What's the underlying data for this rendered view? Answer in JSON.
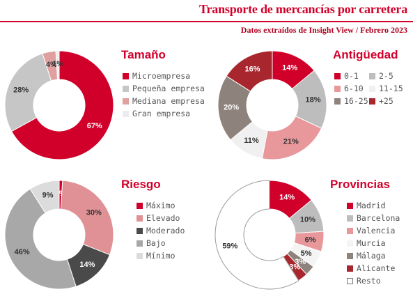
{
  "header": {
    "title": "Transporte de mercancías por carretera",
    "subtitle": "Datos extraídos de Insight View / Febrero 2023"
  },
  "chart_data": [
    {
      "type": "pie",
      "title": "Tamaño",
      "categories": [
        "Microempresa",
        "Pequeña empresa",
        "Mediana empresa",
        "Gran empresa"
      ],
      "values": [
        67,
        28,
        4,
        1
      ],
      "labels": [
        "67%",
        "28%",
        "4%",
        "1%"
      ],
      "colors": [
        "#d1002a",
        "#c6c6c6",
        "#e0a0a0",
        "#ececec"
      ],
      "legend_layout": "list"
    },
    {
      "type": "pie",
      "title": "Antigüedad",
      "categories": [
        "0-1",
        "2-5",
        "6-10",
        "11-15",
        "16-25",
        "+25"
      ],
      "values": [
        14,
        18,
        21,
        11,
        20,
        16
      ],
      "labels": [
        "14%",
        "18%",
        "21%",
        "11%",
        "20%",
        "16%"
      ],
      "colors": [
        "#d1002a",
        "#bdbdbd",
        "#e8989b",
        "#f0f0f0",
        "#8e827c",
        "#a8272e"
      ],
      "legend_layout": "grid"
    },
    {
      "type": "pie",
      "title": "Riesgo",
      "categories": [
        "Máximo",
        "Elevado",
        "Moderado",
        "Bajo",
        "Mínimo"
      ],
      "values": [
        1,
        30,
        14,
        46,
        9
      ],
      "labels": [
        "1%",
        "30%",
        "14%",
        "46%",
        "9%"
      ],
      "colors": [
        "#d1002a",
        "#e09195",
        "#4a4a4a",
        "#a8a8a8",
        "#dcdcdc"
      ],
      "legend_layout": "list"
    },
    {
      "type": "pie",
      "title": "Provincias",
      "categories": [
        "Madrid",
        "Barcelona",
        "Valencia",
        "Murcia",
        "Málaga",
        "Alicante",
        "Resto"
      ],
      "values": [
        14,
        10,
        6,
        5,
        3,
        3,
        59
      ],
      "labels": [
        "14%",
        "10%",
        "6%",
        "5%",
        "3%",
        "3%",
        "59%"
      ],
      "colors": [
        "#d1002a",
        "#bdbdbd",
        "#e8989b",
        "#f4f4f4",
        "#8e827c",
        "#a8272e",
        "#ffffff"
      ],
      "legend_layout": "list"
    }
  ]
}
